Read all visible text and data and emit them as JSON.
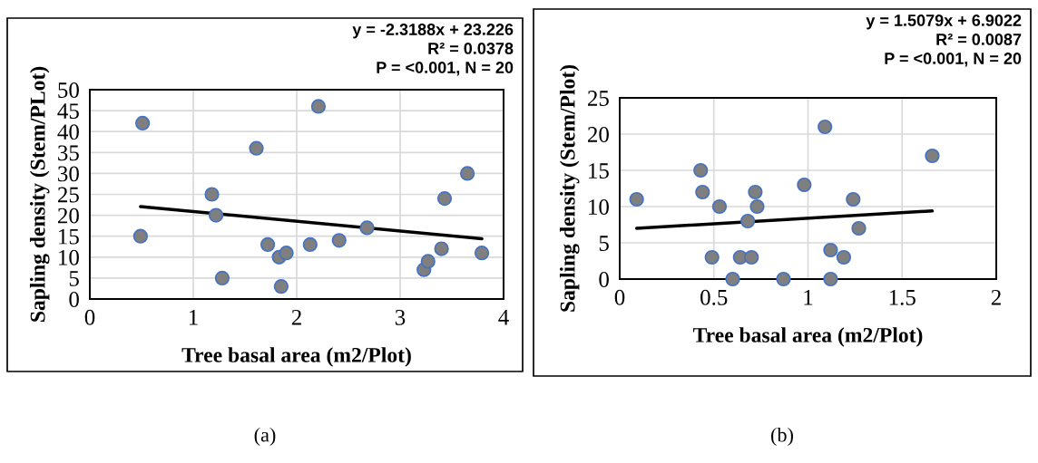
{
  "chart_data": [
    {
      "type": "scatter",
      "xlabel": "Tree basal area (m2/Plot)",
      "ylabel": "Sapling density (Stem/PLot)",
      "xlim": [
        0,
        4
      ],
      "ylim": [
        0,
        50
      ],
      "xticks": [
        0,
        1,
        2,
        3,
        4
      ],
      "yticks": [
        0,
        5,
        10,
        15,
        20,
        25,
        30,
        35,
        40,
        45,
        50
      ],
      "grid": true,
      "annotations": [
        "y = -2.3188x + 23.226",
        "R² = 0.0378",
        "P = <0.001, N = 20",
        "(a)"
      ],
      "series": [
        {
          "marker": "circle",
          "color": "#7f7f7f",
          "x": [
            0.51,
            0.49,
            1.18,
            1.22,
            1.28,
            1.61,
            1.72,
            1.83,
            1.9,
            1.85,
            2.13,
            2.21,
            2.41,
            2.68,
            3.23,
            3.27,
            3.4,
            3.43,
            3.65,
            3.79
          ],
          "values": [
            42,
            15,
            25,
            20,
            5,
            36,
            13,
            10,
            11,
            3,
            13,
            46,
            14,
            17,
            7,
            9,
            12,
            24,
            30,
            11
          ]
        },
        {
          "type": "line",
          "color": "#000000",
          "x": [
            0.49,
            3.79
          ],
          "values": [
            22.1,
            14.4
          ]
        }
      ]
    },
    {
      "type": "scatter",
      "xlabel": "Tree basal area (m2/Plot)",
      "ylabel": "Sapling density (Stem/Plot)",
      "xlim": [
        0,
        2
      ],
      "ylim": [
        0,
        25
      ],
      "xticks": [
        0,
        0.5,
        1,
        1.5,
        2
      ],
      "yticks": [
        0,
        5,
        10,
        15,
        20,
        25
      ],
      "grid": true,
      "annotations": [
        "y = 1.5079x + 6.9022",
        "R² = 0.0087",
        "P = <0.001, N = 20",
        "(b)"
      ],
      "series": [
        {
          "marker": "circle",
          "color": "#7f7f7f",
          "x": [
            0.09,
            0.43,
            0.44,
            0.49,
            0.53,
            0.6,
            0.64,
            0.68,
            0.7,
            0.72,
            0.73,
            0.87,
            0.98,
            1.09,
            1.12,
            1.12,
            1.19,
            1.24,
            1.27,
            1.66
          ],
          "values": [
            11,
            15,
            12,
            3,
            10,
            0,
            3,
            8,
            3,
            12,
            10,
            0,
            13,
            21,
            0,
            4,
            3,
            11,
            7,
            17
          ]
        },
        {
          "type": "line",
          "color": "#000000",
          "x": [
            0.09,
            1.66
          ],
          "values": [
            7.0,
            9.4
          ]
        }
      ]
    }
  ]
}
